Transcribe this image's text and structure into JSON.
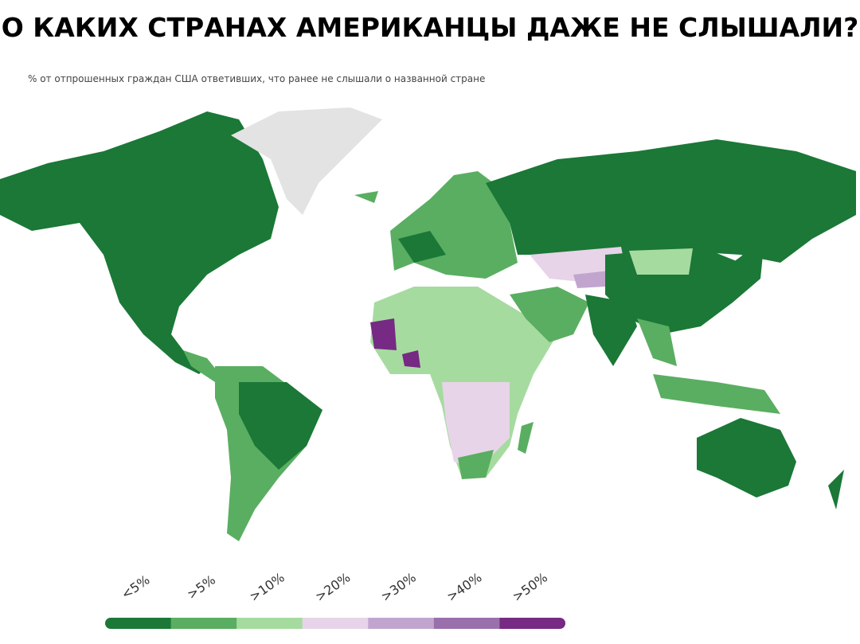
{
  "header": {
    "title": "О КАКИХ СТРАНАХ АМЕРИКАНЦЫ ДАЖЕ НЕ СЛЫШАЛИ?",
    "subtitle": "% от отпрошенных граждан США ответивших, что ранее не слышали о названной стране"
  },
  "legend": {
    "items": [
      {
        "label": "<5%",
        "color": "#1b7837"
      },
      {
        "label": ">5%",
        "color": "#5aae61"
      },
      {
        "label": ">10%",
        "color": "#a6dba0"
      },
      {
        "label": ">20%",
        "color": "#e7d4e8"
      },
      {
        "label": ">30%",
        "color": "#c2a5cf"
      },
      {
        "label": ">40%",
        "color": "#9970ab"
      },
      {
        "label": ">50%",
        "color": "#762a83"
      }
    ]
  }
}
